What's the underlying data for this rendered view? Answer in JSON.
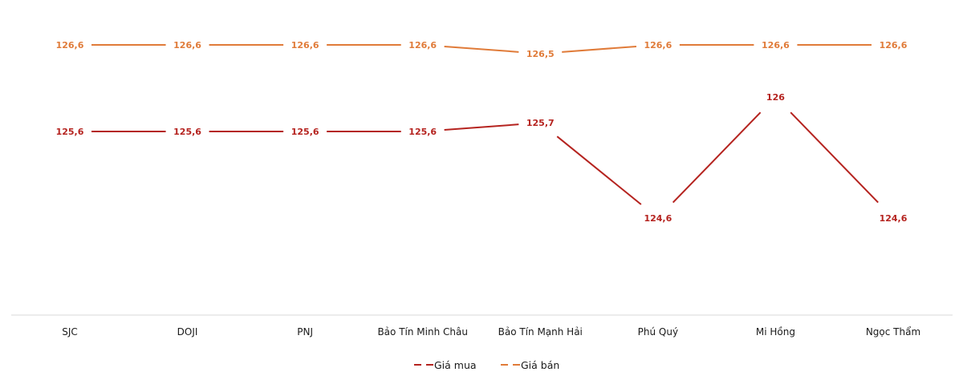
{
  "chart_data": {
    "type": "line",
    "title": "",
    "xlabel": "",
    "ylabel": "",
    "categories": [
      "SJC",
      "DOJI",
      "PNJ",
      "Bảo Tín Minh Châu",
      "Bảo Tín Mạnh Hải",
      "Phú Quý",
      "Mi Hồng",
      "Ngọc Thẩm"
    ],
    "series": [
      {
        "name": "Giá mua",
        "color": "#b5231f",
        "values": [
          125.6,
          125.6,
          125.6,
          125.6,
          125.7,
          124.6,
          126,
          124.6
        ],
        "labels": [
          "125,6",
          "125,6",
          "125,6",
          "125,6",
          "125,7",
          "124,6",
          "126",
          "124,6"
        ]
      },
      {
        "name": "Giá bán",
        "color": "#e07b39",
        "values": [
          126.6,
          126.6,
          126.6,
          126.6,
          126.5,
          126.6,
          126.6,
          126.6
        ],
        "labels": [
          "126,6",
          "126,6",
          "126,6",
          "126,6",
          "126,5",
          "126,6",
          "126,6",
          "126,6"
        ]
      }
    ],
    "ylim": [
      123.5,
      126.6
    ],
    "grid": false,
    "legend_position": "bottom",
    "y_axis_visible": false
  },
  "legend": {
    "items": [
      {
        "label": "Giá mua",
        "color": "#b5231f"
      },
      {
        "label": "Giá bán",
        "color": "#e07b39"
      }
    ]
  }
}
